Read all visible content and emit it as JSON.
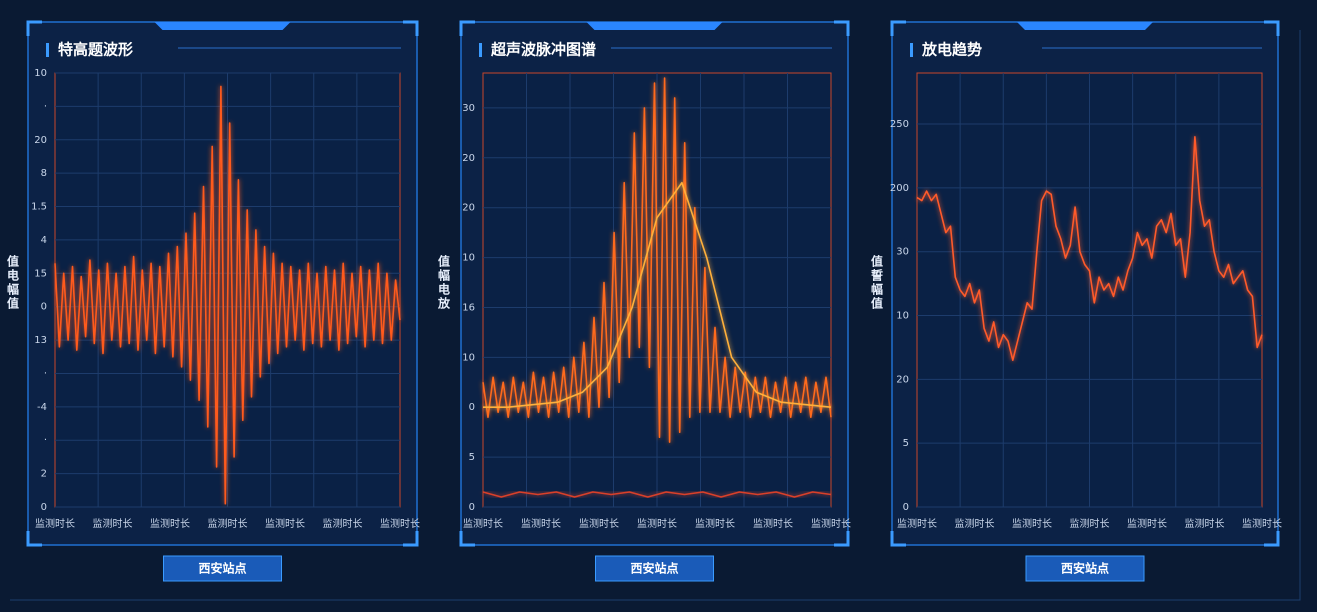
{
  "chart_data": [
    {
      "type": "line",
      "title": "特高题波形",
      "ylabel": "值电幅值",
      "button": "西安站点",
      "ylim": [
        0,
        13
      ],
      "yticks": [
        {
          "value": 0,
          "label": "0"
        },
        {
          "value": 1,
          "label": "2"
        },
        {
          "value": 2,
          "label": "·"
        },
        {
          "value": 3,
          "label": "-4"
        },
        {
          "value": 4,
          "label": "·"
        },
        {
          "value": 5,
          "label": "13"
        },
        {
          "value": 6,
          "label": "0"
        },
        {
          "value": 7,
          "label": "15"
        },
        {
          "value": 8,
          "label": "4"
        },
        {
          "value": 9,
          "label": "1.5"
        },
        {
          "value": 10,
          "label": "8"
        },
        {
          "value": 11,
          "label": "20"
        },
        {
          "value": 12,
          "label": "·"
        },
        {
          "value": 13,
          "label": "10"
        }
      ],
      "x_tick_labels": [
        "监测时长",
        "监测时长",
        "监测时长",
        "监测时长",
        "监测时长",
        "监测时长",
        "监测时长"
      ],
      "grid": true,
      "series": [
        {
          "color": "#ff5a1f",
          "values": [
            7.3,
            4.8,
            7.0,
            5.0,
            7.2,
            4.7,
            6.9,
            5.1,
            7.4,
            4.9,
            7.1,
            4.6,
            7.3,
            5.0,
            7.0,
            4.8,
            7.2,
            4.9,
            7.5,
            4.7,
            7.1,
            5.0,
            7.3,
            4.6,
            7.2,
            4.8,
            7.6,
            4.5,
            7.8,
            4.2,
            8.2,
            3.8,
            8.8,
            3.2,
            9.6,
            2.4,
            10.8,
            1.2,
            12.6,
            0.1,
            11.5,
            1.5,
            9.8,
            2.6,
            8.9,
            3.3,
            8.3,
            3.9,
            7.8,
            4.3,
            7.6,
            4.6,
            7.3,
            4.8,
            7.2,
            5.0,
            7.1,
            4.7,
            7.3,
            4.9,
            7.0,
            4.8,
            7.2,
            5.0,
            7.1,
            4.7,
            7.3,
            4.9,
            7.0,
            5.1,
            7.2,
            4.8,
            7.1,
            5.0,
            7.3,
            4.9,
            7.0,
            5.0,
            6.8,
            5.6
          ]
        }
      ]
    },
    {
      "type": "line",
      "title": "超声波脉冲图谱",
      "ylabel": "值幅电放",
      "button": "西安站点",
      "ylim": [
        0,
        8.7
      ],
      "yticks": [
        {
          "value": 0,
          "label": "0"
        },
        {
          "value": 1,
          "label": "5"
        },
        {
          "value": 2,
          "label": "0"
        },
        {
          "value": 3,
          "label": "10"
        },
        {
          "value": 4,
          "label": "16"
        },
        {
          "value": 5,
          "label": "10"
        },
        {
          "value": 6,
          "label": "20"
        },
        {
          "value": 7,
          "label": "20"
        },
        {
          "value": 8,
          "label": "30"
        }
      ],
      "x_tick_labels": [
        "监测时长",
        "监测时长",
        "监测时长",
        "监测时长",
        "监测时长",
        "监测时长",
        "监测时长"
      ],
      "grid": true,
      "series": [
        {
          "color": "#ff6a1f",
          "values": [
            2.5,
            1.8,
            2.6,
            1.9,
            2.5,
            1.8,
            2.6,
            1.9,
            2.5,
            1.8,
            2.7,
            1.9,
            2.6,
            1.8,
            2.7,
            1.9,
            2.8,
            1.8,
            3.0,
            1.9,
            3.3,
            1.8,
            3.8,
            2.0,
            4.5,
            2.2,
            5.5,
            2.5,
            6.5,
            3.0,
            7.5,
            3.2,
            8.0,
            2.8,
            8.5,
            1.4,
            8.6,
            1.3,
            8.2,
            1.5,
            7.3,
            1.8,
            6.0,
            1.9,
            4.8,
            1.9,
            3.6,
            1.9,
            3.0,
            1.8,
            2.8,
            1.9,
            2.7,
            1.8,
            2.6,
            1.9,
            2.6,
            1.8,
            2.5,
            1.9,
            2.6,
            1.8,
            2.5,
            1.9,
            2.6,
            1.8,
            2.5,
            1.9,
            2.6,
            1.8
          ]
        },
        {
          "color": "#ffb03a",
          "values": [
            2.0,
            2.0,
            2.05,
            2.1,
            2.3,
            2.8,
            4.0,
            5.8,
            6.5,
            5.0,
            3.0,
            2.3,
            2.1,
            2.05,
            2.0
          ]
        },
        {
          "color": "#d9402a",
          "values": [
            0.3,
            0.2,
            0.3,
            0.25,
            0.3,
            0.2,
            0.3,
            0.25,
            0.3,
            0.2,
            0.3,
            0.25,
            0.3,
            0.2,
            0.3,
            0.25,
            0.3,
            0.2,
            0.3,
            0.25
          ]
        }
      ]
    },
    {
      "type": "line",
      "title": "放电趋势",
      "ylabel": "值誓幅值",
      "button": "西安站点",
      "ylim": [
        0,
        6.8
      ],
      "yticks": [
        {
          "value": 0,
          "label": "0"
        },
        {
          "value": 1,
          "label": "5"
        },
        {
          "value": 2,
          "label": "20"
        },
        {
          "value": 3,
          "label": "10"
        },
        {
          "value": 4,
          "label": "30"
        },
        {
          "value": 5,
          "label": "200"
        },
        {
          "value": 6,
          "label": "250"
        }
      ],
      "x_tick_labels": [
        "监测时长",
        "监测时长",
        "监测时长",
        "监测时长",
        "监测时长",
        "监测时长",
        "监测时长"
      ],
      "grid": true,
      "series": [
        {
          "color": "#ff5a2a",
          "values": [
            4.85,
            4.8,
            4.95,
            4.8,
            4.9,
            4.6,
            4.3,
            4.4,
            3.6,
            3.4,
            3.3,
            3.5,
            3.2,
            3.4,
            2.8,
            2.6,
            2.9,
            2.5,
            2.7,
            2.6,
            2.3,
            2.6,
            2.9,
            3.2,
            3.1,
            4.0,
            4.8,
            4.95,
            4.9,
            4.4,
            4.2,
            3.9,
            4.1,
            4.7,
            4.0,
            3.8,
            3.7,
            3.2,
            3.6,
            3.4,
            3.5,
            3.3,
            3.6,
            3.4,
            3.7,
            3.9,
            4.3,
            4.1,
            4.2,
            3.9,
            4.4,
            4.5,
            4.3,
            4.6,
            4.1,
            4.2,
            3.6,
            4.3,
            5.8,
            4.8,
            4.4,
            4.5,
            4.0,
            3.7,
            3.6,
            3.8,
            3.5,
            3.6,
            3.7,
            3.4,
            3.3,
            2.5,
            2.7
          ]
        }
      ]
    }
  ]
}
